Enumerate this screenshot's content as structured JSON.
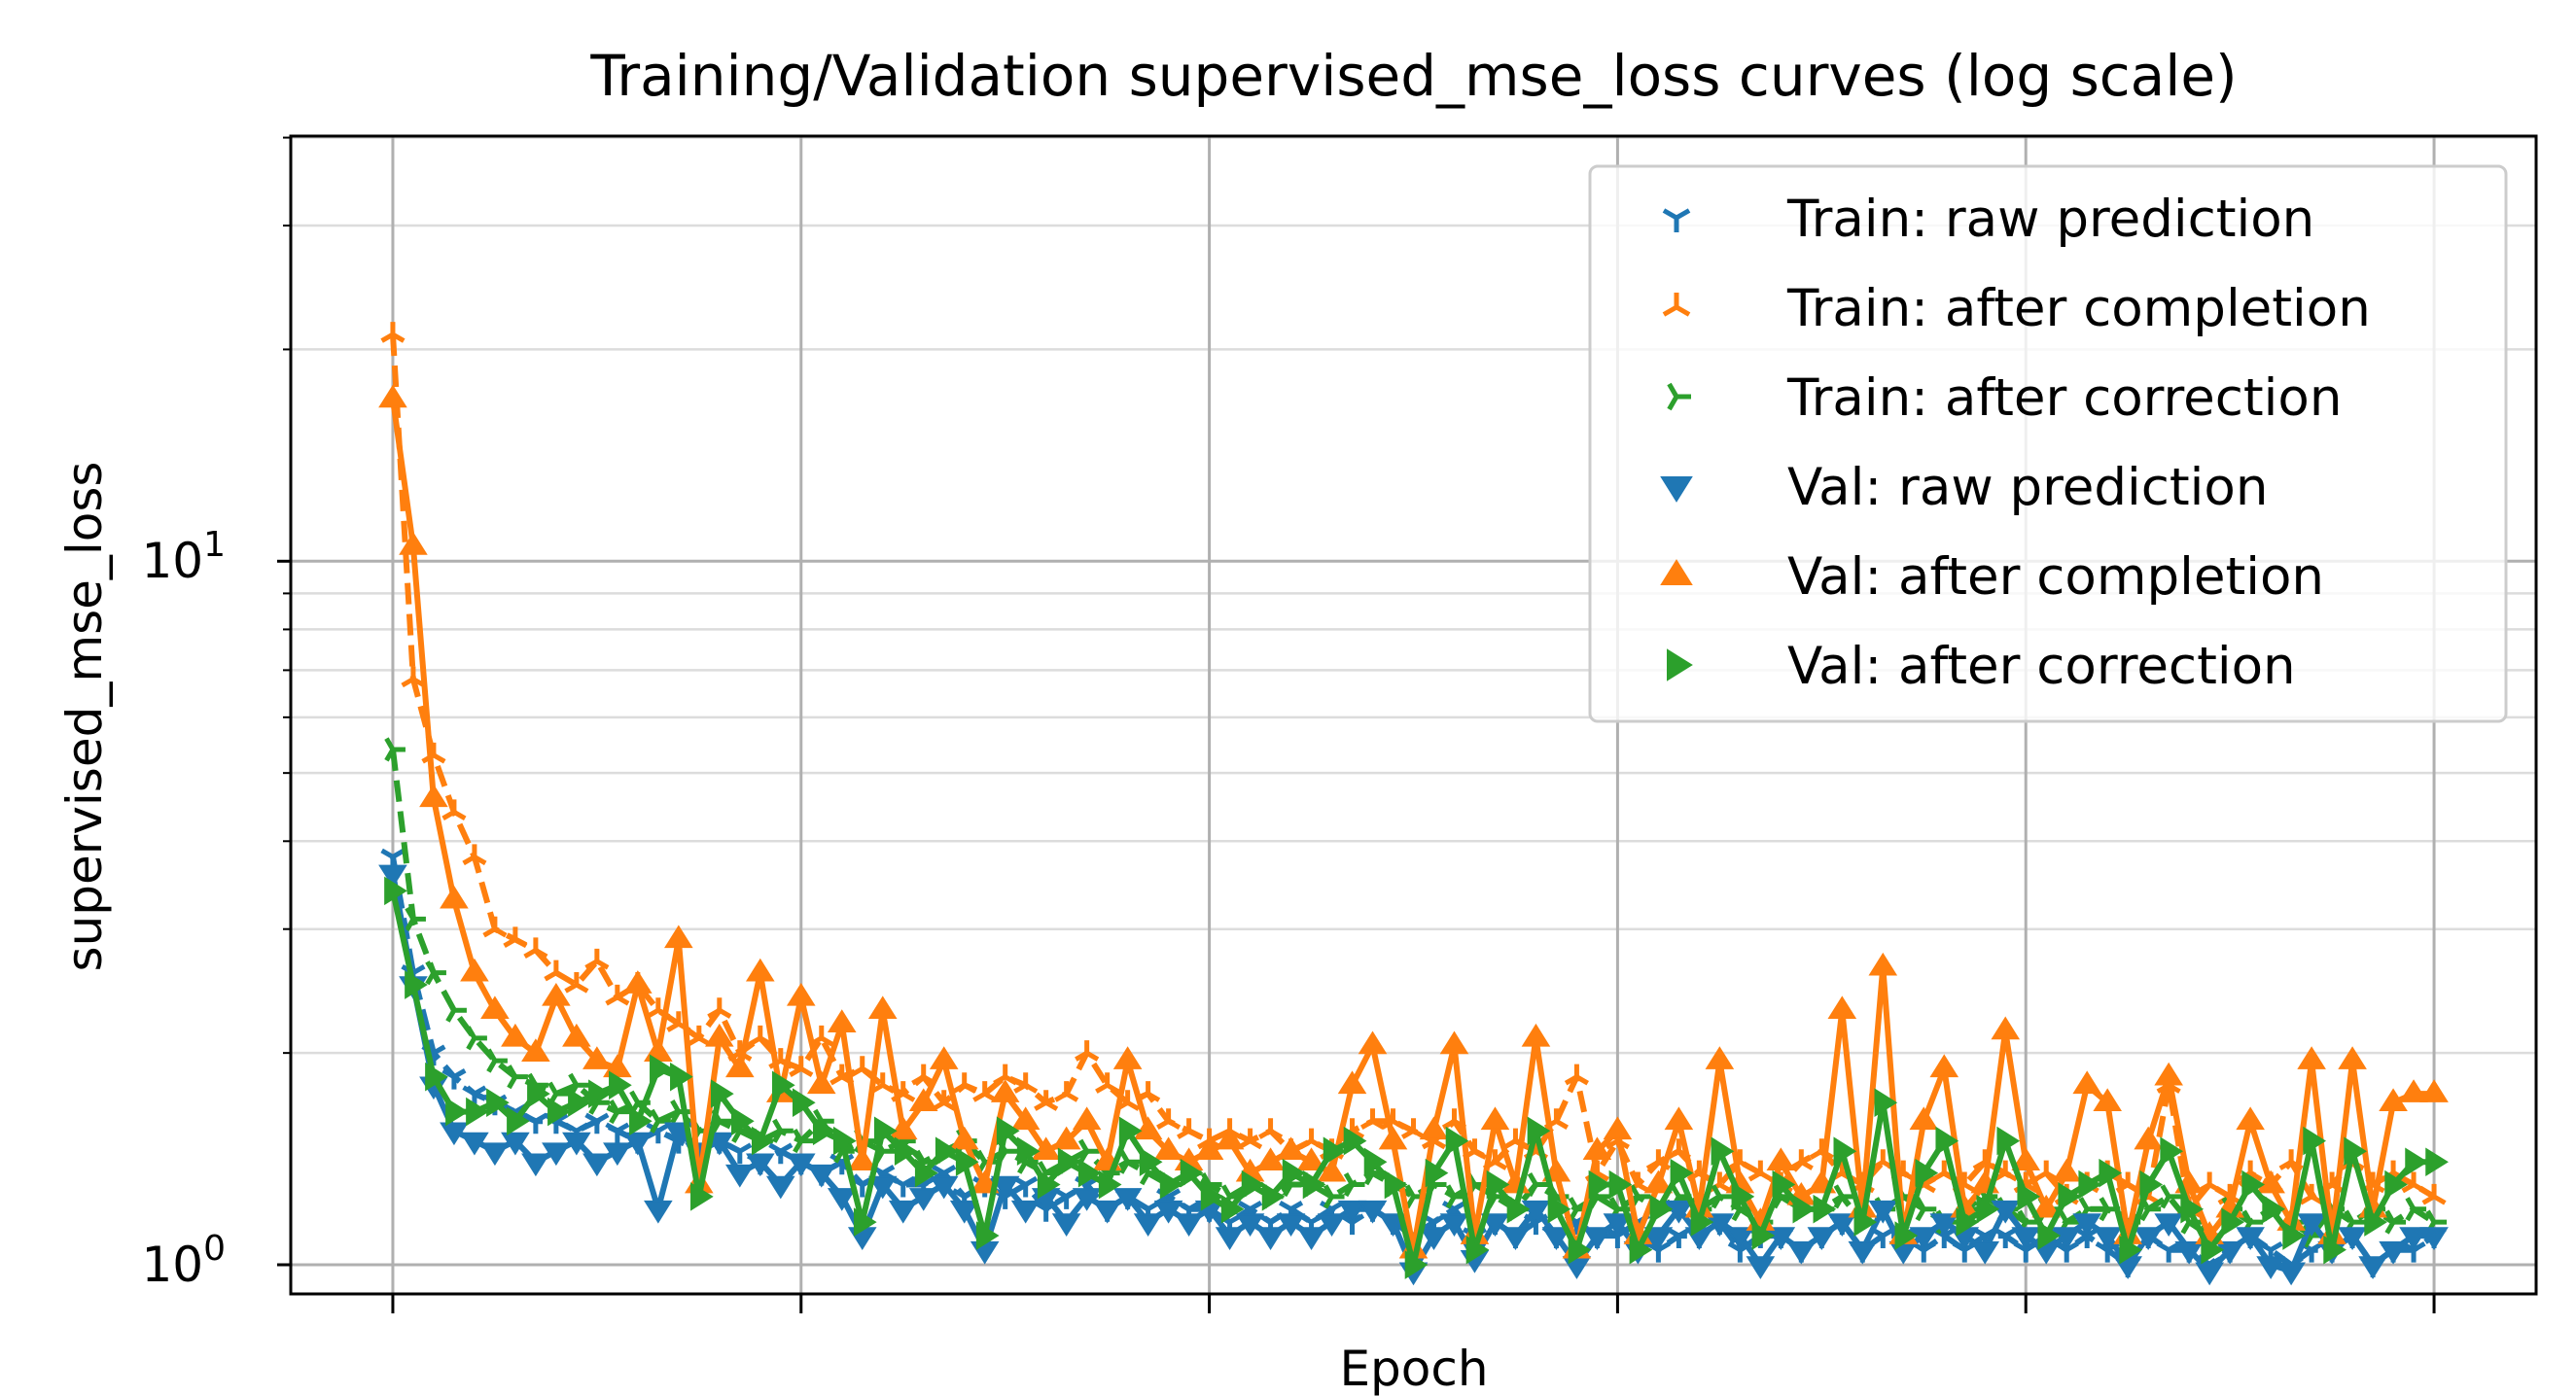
{
  "chart_data": {
    "type": "line",
    "title": "Training/Validation supervised_mse_loss curves (log scale)",
    "xlabel": "Epoch",
    "ylabel": "supervised_mse_loss",
    "yscale": "log",
    "xlim": [
      -5,
      105
    ],
    "ylim": [
      0.909,
      40.2
    ],
    "x_ticks": [
      0,
      20,
      40,
      60,
      80,
      100
    ],
    "x_tick_labels_shown": false,
    "y_ticks": [
      1,
      10
    ],
    "y_tick_labels": [
      {
        "base": "10",
        "exp": "0"
      },
      {
        "base": "10",
        "exp": "1"
      }
    ],
    "grid": true,
    "legend_position": "top-right",
    "x": [
      0,
      1,
      2,
      3,
      4,
      5,
      6,
      7,
      8,
      9,
      10,
      11,
      12,
      13,
      14,
      15,
      16,
      17,
      18,
      19,
      20,
      21,
      22,
      23,
      24,
      25,
      26,
      27,
      28,
      29,
      30,
      31,
      32,
      33,
      34,
      35,
      36,
      37,
      38,
      39,
      40,
      41,
      42,
      43,
      44,
      45,
      46,
      47,
      48,
      49,
      50,
      51,
      52,
      53,
      54,
      55,
      56,
      57,
      58,
      59,
      60,
      61,
      62,
      63,
      64,
      65,
      66,
      67,
      68,
      69,
      70,
      71,
      72,
      73,
      74,
      75,
      76,
      77,
      78,
      79,
      80,
      81,
      82,
      83,
      84,
      85,
      86,
      87,
      88,
      89,
      90,
      91,
      92,
      93,
      94,
      95,
      96,
      97,
      98,
      99,
      100
    ],
    "series": [
      {
        "name": "Train: raw prediction",
        "color": "#1f77b4",
        "linestyle": "dashed",
        "marker": "tri_down",
        "values": [
          3.8,
          2.6,
          2.0,
          1.85,
          1.75,
          1.7,
          1.65,
          1.6,
          1.6,
          1.55,
          1.6,
          1.55,
          1.5,
          1.55,
          1.5,
          1.45,
          1.5,
          1.45,
          1.4,
          1.45,
          1.4,
          1.35,
          1.4,
          1.3,
          1.35,
          1.3,
          1.3,
          1.35,
          1.25,
          1.3,
          1.25,
          1.3,
          1.2,
          1.25,
          1.3,
          1.2,
          1.25,
          1.2,
          1.25,
          1.2,
          1.2,
          1.15,
          1.2,
          1.15,
          1.2,
          1.15,
          1.2,
          1.15,
          1.2,
          1.15,
          1.1,
          1.15,
          1.2,
          1.1,
          1.15,
          1.1,
          1.15,
          1.1,
          1.15,
          1.1,
          1.1,
          1.15,
          1.05,
          1.1,
          1.1,
          1.15,
          1.05,
          1.1,
          1.1,
          1.05,
          1.1,
          1.15,
          1.05,
          1.1,
          1.1,
          1.05,
          1.1,
          1.05,
          1.1,
          1.1,
          1.05,
          1.1,
          1.05,
          1.1,
          1.05,
          1.0,
          1.1,
          1.05,
          1.05,
          1.0,
          1.05,
          1.1,
          1.05,
          1.0,
          1.05,
          1.05,
          1.1,
          1.0,
          1.05,
          1.05,
          1.1
        ]
      },
      {
        "name": "Train: after completion",
        "color": "#ff7f0e",
        "linestyle": "dashed",
        "marker": "tri_up",
        "values": [
          21,
          6.8,
          5.3,
          4.4,
          3.8,
          3.0,
          2.9,
          2.8,
          2.6,
          2.5,
          2.7,
          2.4,
          2.5,
          2.3,
          2.2,
          2.1,
          2.3,
          2.0,
          2.1,
          1.95,
          1.9,
          2.1,
          1.85,
          1.9,
          1.8,
          1.75,
          1.85,
          1.7,
          1.8,
          1.75,
          1.85,
          1.8,
          1.7,
          1.75,
          2.0,
          1.8,
          1.7,
          1.75,
          1.6,
          1.55,
          1.5,
          1.55,
          1.5,
          1.55,
          1.45,
          1.5,
          1.45,
          1.55,
          1.6,
          1.6,
          1.55,
          1.5,
          1.6,
          1.45,
          1.4,
          1.5,
          1.45,
          1.6,
          1.85,
          1.35,
          1.5,
          1.3,
          1.4,
          1.45,
          1.35,
          1.3,
          1.4,
          1.35,
          1.3,
          1.4,
          1.45,
          1.35,
          1.3,
          1.4,
          1.35,
          1.3,
          1.35,
          1.3,
          1.4,
          1.35,
          1.3,
          1.35,
          1.25,
          1.3,
          1.35,
          1.3,
          1.25,
          1.8,
          1.2,
          1.3,
          1.25,
          1.35,
          1.3,
          1.4,
          1.25,
          1.3,
          1.4,
          1.3,
          1.35,
          1.3,
          1.25
        ]
      },
      {
        "name": "Train: after correction",
        "color": "#2ca02c",
        "linestyle": "dashed",
        "marker": "tri_right",
        "values": [
          5.4,
          3.1,
          2.6,
          2.3,
          2.1,
          1.95,
          1.85,
          1.8,
          1.75,
          1.8,
          1.7,
          1.65,
          1.7,
          1.6,
          1.65,
          1.55,
          1.6,
          1.55,
          1.5,
          1.55,
          1.5,
          1.6,
          1.45,
          1.5,
          1.45,
          1.5,
          1.4,
          1.45,
          1.5,
          1.4,
          1.45,
          1.4,
          1.35,
          1.4,
          1.45,
          1.35,
          1.4,
          1.35,
          1.3,
          1.35,
          1.3,
          1.25,
          1.3,
          1.25,
          1.3,
          1.3,
          1.25,
          1.3,
          1.35,
          1.3,
          1.25,
          1.3,
          1.25,
          1.3,
          1.25,
          1.2,
          1.3,
          1.25,
          1.2,
          1.25,
          1.2,
          1.25,
          1.2,
          1.25,
          1.2,
          1.25,
          1.2,
          1.15,
          1.25,
          1.2,
          1.2,
          1.25,
          1.15,
          1.2,
          1.25,
          1.2,
          1.15,
          1.2,
          1.25,
          1.2,
          1.15,
          1.2,
          1.15,
          1.2,
          1.2,
          1.15,
          1.2,
          1.25,
          1.15,
          1.1,
          1.2,
          1.15,
          1.2,
          1.15,
          1.1,
          1.2,
          1.15,
          1.2,
          1.15,
          1.2,
          1.15
        ]
      },
      {
        "name": "Val: raw prediction",
        "color": "#1f77b4",
        "linestyle": "solid",
        "marker": "triangle_down",
        "values": [
          3.6,
          2.5,
          1.8,
          1.55,
          1.5,
          1.45,
          1.5,
          1.4,
          1.45,
          1.5,
          1.4,
          1.45,
          1.5,
          1.2,
          1.55,
          1.45,
          1.5,
          1.35,
          1.4,
          1.3,
          1.4,
          1.35,
          1.25,
          1.1,
          1.3,
          1.2,
          1.25,
          1.3,
          1.2,
          1.05,
          1.3,
          1.2,
          1.25,
          1.15,
          1.25,
          1.2,
          1.25,
          1.15,
          1.2,
          1.15,
          1.2,
          1.1,
          1.15,
          1.1,
          1.15,
          1.1,
          1.15,
          1.2,
          1.2,
          1.15,
          0.98,
          1.1,
          1.15,
          1.02,
          1.15,
          1.1,
          1.2,
          1.1,
          1.0,
          1.1,
          1.15,
          1.05,
          1.1,
          1.2,
          1.1,
          1.15,
          1.1,
          1.0,
          1.1,
          1.05,
          1.1,
          1.15,
          1.05,
          1.2,
          1.05,
          1.1,
          1.15,
          1.1,
          1.05,
          1.2,
          1.1,
          1.05,
          1.1,
          1.15,
          1.1,
          1.0,
          1.1,
          1.15,
          1.05,
          0.98,
          1.05,
          1.1,
          1.0,
          0.98,
          1.15,
          1.05,
          1.1,
          1.0,
          1.05,
          1.1,
          1.1
        ]
      },
      {
        "name": "Val: after completion",
        "color": "#ff7f0e",
        "linestyle": "solid",
        "marker": "triangle_up",
        "values": [
          17.0,
          10.5,
          4.6,
          3.3,
          2.6,
          2.3,
          2.1,
          2.0,
          2.4,
          2.1,
          1.95,
          1.9,
          2.5,
          2.0,
          2.9,
          1.3,
          2.1,
          1.9,
          2.6,
          1.75,
          2.4,
          1.8,
          2.2,
          1.4,
          2.3,
          1.55,
          1.7,
          1.95,
          1.5,
          1.3,
          1.75,
          1.6,
          1.45,
          1.5,
          1.6,
          1.4,
          1.95,
          1.55,
          1.45,
          1.4,
          1.45,
          1.5,
          1.35,
          1.4,
          1.45,
          1.4,
          1.35,
          1.8,
          2.05,
          1.5,
          1.05,
          1.55,
          2.05,
          1.1,
          1.6,
          1.3,
          2.1,
          1.35,
          1.05,
          1.45,
          1.55,
          1.1,
          1.3,
          1.6,
          1.2,
          1.95,
          1.3,
          1.15,
          1.4,
          1.25,
          1.3,
          2.3,
          1.2,
          2.65,
          1.1,
          1.6,
          1.9,
          1.2,
          1.3,
          2.15,
          1.4,
          1.2,
          1.35,
          1.8,
          1.7,
          1.1,
          1.5,
          1.85,
          1.3,
          1.1,
          1.2,
          1.6,
          1.3,
          1.15,
          1.95,
          1.1,
          1.95,
          1.2,
          1.7,
          1.75,
          1.75
        ]
      },
      {
        "name": "Val: after correction",
        "color": "#2ca02c",
        "linestyle": "solid",
        "marker": "triangle_right",
        "values": [
          3.4,
          2.5,
          1.85,
          1.65,
          1.65,
          1.7,
          1.6,
          1.75,
          1.65,
          1.7,
          1.75,
          1.8,
          1.6,
          1.9,
          1.85,
          1.25,
          1.75,
          1.6,
          1.5,
          1.8,
          1.7,
          1.55,
          1.5,
          1.15,
          1.55,
          1.45,
          1.35,
          1.45,
          1.4,
          1.1,
          1.55,
          1.45,
          1.3,
          1.4,
          1.35,
          1.3,
          1.55,
          1.4,
          1.3,
          1.35,
          1.25,
          1.2,
          1.3,
          1.25,
          1.35,
          1.3,
          1.45,
          1.5,
          1.4,
          1.3,
          1.0,
          1.35,
          1.5,
          1.05,
          1.3,
          1.2,
          1.55,
          1.2,
          1.05,
          1.3,
          1.3,
          1.05,
          1.2,
          1.35,
          1.15,
          1.45,
          1.25,
          1.1,
          1.3,
          1.2,
          1.2,
          1.45,
          1.15,
          1.7,
          1.1,
          1.35,
          1.5,
          1.15,
          1.2,
          1.5,
          1.25,
          1.1,
          1.25,
          1.3,
          1.35,
          1.05,
          1.3,
          1.45,
          1.2,
          1.05,
          1.15,
          1.3,
          1.2,
          1.1,
          1.5,
          1.05,
          1.45,
          1.15,
          1.3,
          1.4,
          1.4
        ]
      }
    ]
  }
}
